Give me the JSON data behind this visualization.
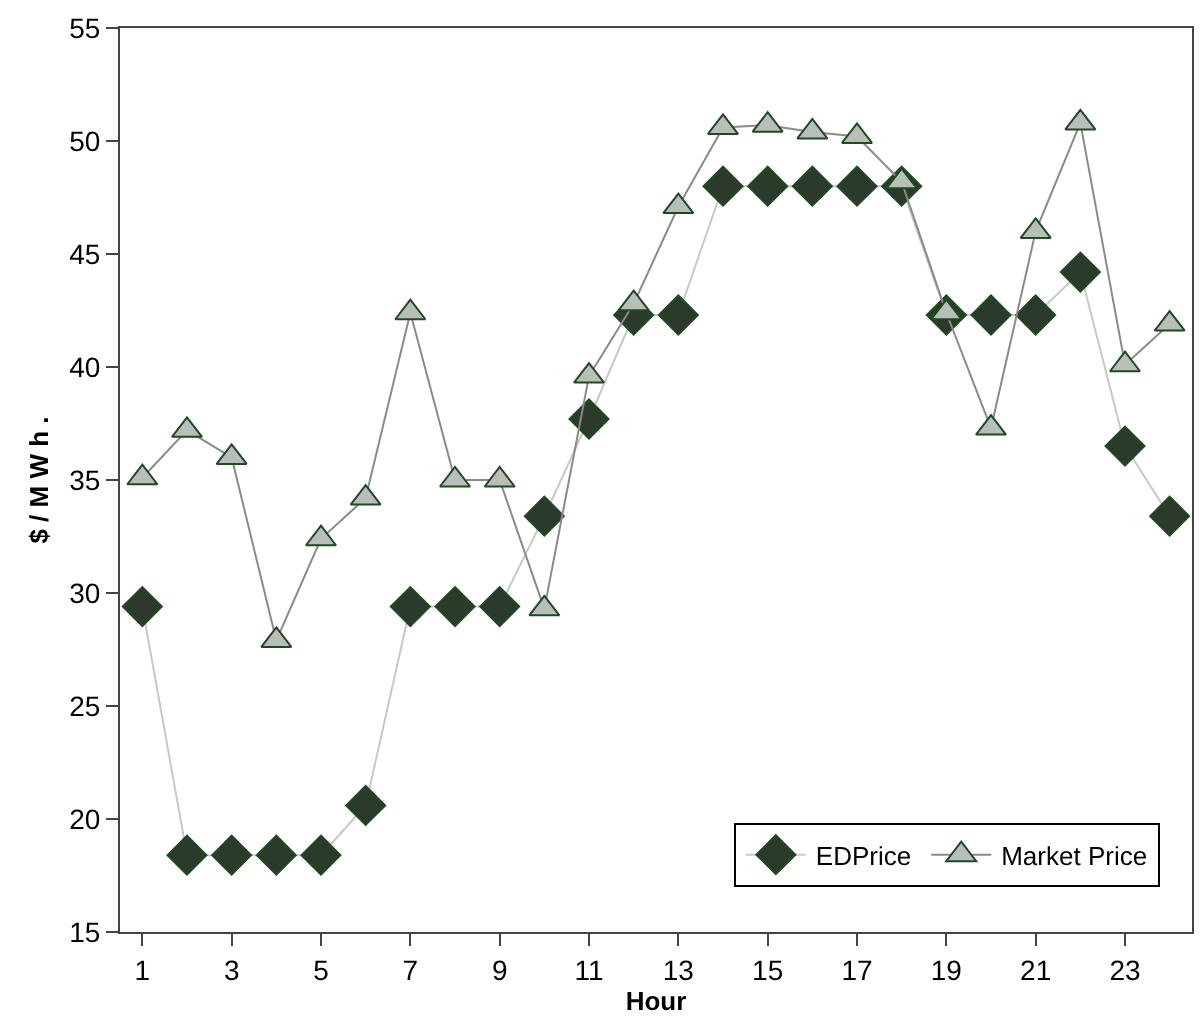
{
  "chart_data": {
    "type": "line",
    "xlabel": "Hour",
    "ylabel": "$ / M W h .",
    "x": [
      1,
      2,
      3,
      4,
      5,
      6,
      7,
      8,
      9,
      10,
      11,
      12,
      13,
      14,
      15,
      16,
      17,
      18,
      19,
      20,
      21,
      22,
      23,
      24
    ],
    "xlim": [
      0.5,
      24.5
    ],
    "xticks": [
      1,
      3,
      5,
      7,
      9,
      11,
      13,
      15,
      17,
      19,
      21,
      23
    ],
    "series": [
      {
        "name": "EDPrice",
        "color": "#2b3a2b",
        "marker": "diamond",
        "values": [
          29.4,
          18.4,
          18.4,
          18.4,
          18.4,
          20.6,
          29.4,
          29.4,
          29.4,
          33.4,
          37.7,
          42.3,
          42.3,
          48,
          48,
          48,
          48,
          48,
          42.3,
          42.3,
          42.3,
          44.2,
          36.5,
          33.4
        ]
      },
      {
        "name": "Market Price",
        "color": "#b8bfb8",
        "marker": "triangle",
        "values": [
          35.1,
          37.2,
          36,
          27.9,
          32.4,
          34.2,
          42.4,
          35,
          35,
          29.3,
          39.6,
          42.8,
          47.1,
          50.6,
          50.7,
          50.4,
          50.2,
          48.2,
          42.4,
          37.3,
          46,
          50.8,
          40.1,
          41.9
        ]
      }
    ],
    "ylim": [
      15,
      55
    ],
    "yticks": [
      15,
      20,
      25,
      30,
      35,
      40,
      45,
      50,
      55
    ],
    "grid": false,
    "legend": "bottom right"
  }
}
